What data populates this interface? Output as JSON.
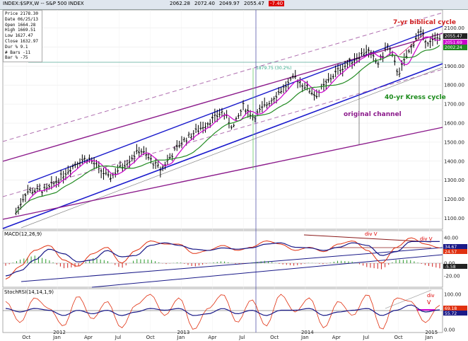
{
  "header": {
    "symbol_label": "INDEX:$SPX,W -- S&P 500 INDEX",
    "quote": [
      "2062.28",
      "2072.40",
      "2049.97",
      "2055.47"
    ],
    "change": "-7.40"
  },
  "infobox": {
    "rows": [
      "Price 2178.30",
      "Date 06/25/13",
      "Open 1664.28",
      "High 1669.51",
      "Low 1627.47",
      "Close 1632.97",
      "Dur % 9.1",
      "# Bars -11",
      "Bar % -75"
    ]
  },
  "annotations": {
    "biblical": "7-yr biblical cycle",
    "kress": "40-yr Kress cycle",
    "channel": "original channel",
    "fib": "1879.75 (30.2%)",
    "div1": "div V",
    "div2": "div V",
    "div3": "div",
    "div3_v": "V"
  },
  "panels": {
    "macd_label": "MACD(12,26,9)",
    "stoch_label": "StochRSI(14,14,1,9)"
  },
  "price_tags": {
    "a": "2055.47",
    "b": "2051.69",
    "c": "2002.24"
  },
  "macd_tags": {
    "a": "34.67",
    "b": "24.57",
    "c": "-5.58"
  },
  "stoch_tags": {
    "a": "69.18",
    "b": "55.72"
  },
  "colors": {
    "price_bar": "#000",
    "ma_pink": "#cc00cc",
    "ma_green": "#228b22",
    "channel_blue": "#1a1acc",
    "channel_purple": "#8b1a8b",
    "macd_red": "#e03010",
    "signal_blue": "#1a1a88"
  },
  "chart_data": [
    {
      "type": "ohlc",
      "title": "INDEX:$SPX,W -- S&P 500 INDEX",
      "y_ticks": [
        1100,
        1200,
        1300,
        1400,
        1500,
        1600,
        1700,
        1800,
        1900,
        2000,
        2100
      ],
      "ylim": [
        1050,
        2180
      ],
      "x_ticks": [
        "Oct",
        "2012",
        "Jan",
        "Apr",
        "Jul",
        "Oct",
        "2013",
        "Jan",
        "Apr",
        "Jul",
        "Oct",
        "2014",
        "Jan",
        "Apr",
        "Jul",
        "Oct",
        "2015",
        "Jan"
      ],
      "close_path_points": [
        [
          "2011-09",
          1130
        ],
        [
          "2011-10",
          1240
        ],
        [
          "2011-12",
          1250
        ],
        [
          "2012-03",
          1400
        ],
        [
          "2012-04",
          1415
        ],
        [
          "2012-06",
          1310
        ],
        [
          "2012-09",
          1460
        ],
        [
          "2012-11",
          1355
        ],
        [
          "2013-01",
          1500
        ],
        [
          "2013-05",
          1660
        ],
        [
          "2013-06",
          1575
        ],
        [
          "2013-07",
          1690
        ],
        [
          "2013-08",
          1630
        ],
        [
          "2013-10",
          1740
        ],
        [
          "2013-12",
          1840
        ],
        [
          "2014-02",
          1745
        ],
        [
          "2014-04",
          1870
        ],
        [
          "2014-07",
          1985
        ],
        [
          "2014-08",
          1910
        ],
        [
          "2014-09",
          2010
        ],
        [
          "2014-10",
          1860
        ],
        [
          "2014-12",
          2080
        ],
        [
          "2015-01",
          2020
        ],
        [
          "2015-02",
          2055
        ]
      ]
    },
    {
      "type": "line",
      "title": "MACD(12,26,9)",
      "y_ticks": [
        40,
        20,
        0,
        -20
      ],
      "series": [
        {
          "name": "MACD",
          "values": [
            -25,
            -5,
            20,
            28,
            5,
            -5,
            15,
            25,
            0,
            20,
            35,
            30,
            30,
            15,
            20,
            28,
            20,
            25,
            35,
            30,
            20,
            25,
            18,
            30,
            35,
            20,
            0,
            25,
            40,
            30,
            24
          ]
        },
        {
          "name": "Signal",
          "values": [
            -20,
            -12,
            5,
            22,
            15,
            2,
            5,
            20,
            10,
            12,
            28,
            32,
            28,
            22,
            20,
            24,
            22,
            24,
            30,
            32,
            25,
            24,
            20,
            25,
            32,
            28,
            12,
            18,
            34,
            34,
            34
          ]
        }
      ]
    },
    {
      "type": "line",
      "title": "StochRSI(14,14,1,9)",
      "y_ticks": [
        100,
        50,
        0
      ],
      "series": [
        {
          "name": "StochRSI",
          "values": [
            80,
            20,
            90,
            60,
            10,
            95,
            30,
            80,
            5,
            70,
            100,
            40,
            90,
            0,
            60,
            100,
            20,
            85,
            10,
            100,
            50,
            90,
            5,
            80,
            40,
            100,
            0,
            90,
            80,
            20,
            69
          ]
        },
        {
          "name": "Signal",
          "values": [
            60,
            50,
            60,
            55,
            40,
            55,
            45,
            55,
            40,
            50,
            60,
            55,
            60,
            40,
            45,
            60,
            45,
            55,
            40,
            55,
            55,
            60,
            40,
            50,
            55,
            60,
            40,
            55,
            70,
            50,
            56
          ]
        }
      ]
    }
  ]
}
